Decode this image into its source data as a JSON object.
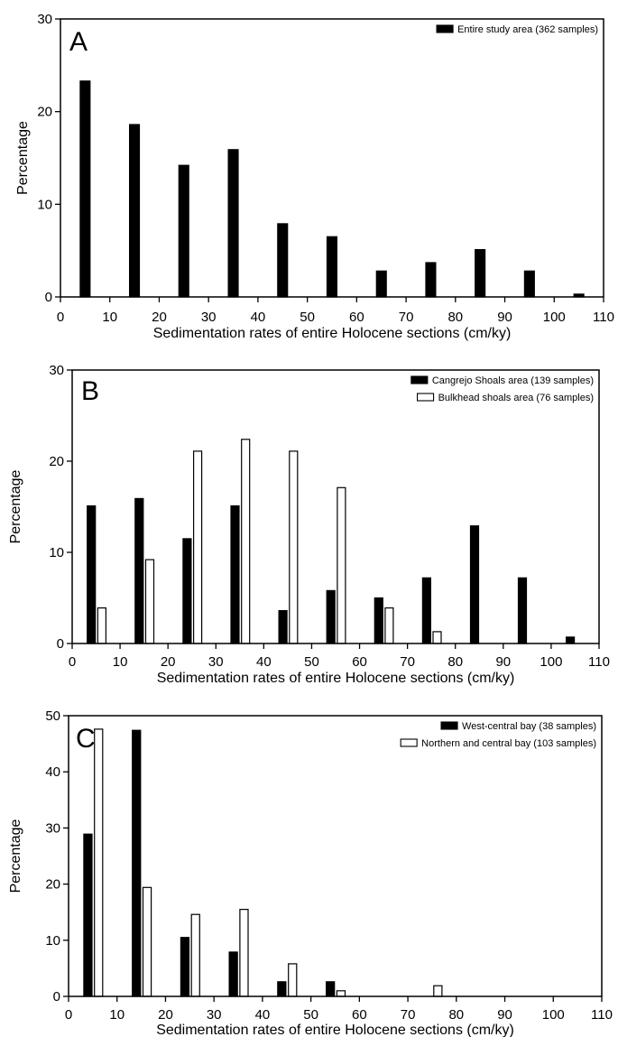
{
  "chart_data": [
    {
      "type": "bar",
      "panel_label": "A",
      "xlabel": "Sedimentation rates of entire Holocene sections (cm/ky)",
      "ylabel": "Percentage",
      "xlim": [
        0,
        110
      ],
      "ylim": [
        0,
        30
      ],
      "xticks": [
        0,
        10,
        20,
        30,
        40,
        50,
        60,
        70,
        80,
        90,
        100,
        110
      ],
      "yticks": [
        0,
        10,
        20,
        30
      ],
      "grid": false,
      "legend_position": "top-right",
      "x": [
        5,
        15,
        25,
        35,
        45,
        55,
        65,
        75,
        85,
        95,
        105
      ],
      "series": [
        {
          "name": "Entire study area (362 samples)",
          "fill": "#000000",
          "values": [
            23.3,
            18.6,
            14.2,
            15.9,
            7.9,
            6.5,
            2.8,
            3.7,
            5.1,
            2.8,
            0.3
          ]
        }
      ]
    },
    {
      "type": "bar",
      "panel_label": "B",
      "xlabel": "Sedimentation rates of entire Holocene sections (cm/ky)",
      "ylabel": "Percentage",
      "xlim": [
        0,
        110
      ],
      "ylim": [
        0,
        30
      ],
      "xticks": [
        0,
        10,
        20,
        30,
        40,
        50,
        60,
        70,
        80,
        90,
        100,
        110
      ],
      "yticks": [
        0,
        10,
        20,
        30
      ],
      "grid": false,
      "legend_position": "top-right",
      "x": [
        5,
        15,
        25,
        35,
        45,
        55,
        65,
        75,
        85,
        95,
        105
      ],
      "series": [
        {
          "name": "Cangrejo Shoals area (139 samples)",
          "fill": "#000000",
          "values": [
            15.1,
            15.9,
            11.5,
            15.1,
            3.6,
            5.8,
            5.0,
            7.2,
            12.9,
            7.2,
            0.7
          ]
        },
        {
          "name": "Bulkhead shoals area (76 samples)",
          "fill": "#ffffff",
          "values": [
            3.9,
            9.2,
            21.1,
            22.4,
            21.1,
            17.1,
            3.9,
            1.3,
            0,
            0,
            0
          ]
        }
      ]
    },
    {
      "type": "bar",
      "panel_label": "C",
      "xlabel": "Sedimentation rates of entire Holocene sections (cm/ky)",
      "ylabel": "Percentage",
      "xlim": [
        0,
        110
      ],
      "ylim": [
        0,
        50
      ],
      "xticks": [
        0,
        10,
        20,
        30,
        40,
        50,
        60,
        70,
        80,
        90,
        100,
        110
      ],
      "yticks": [
        0,
        10,
        20,
        30,
        40,
        50
      ],
      "grid": false,
      "legend_position": "top-right",
      "x": [
        5,
        15,
        25,
        35,
        45,
        55,
        65,
        75,
        85,
        95,
        105
      ],
      "series": [
        {
          "name": "West-central bay (38 samples)",
          "fill": "#000000",
          "values": [
            28.9,
            47.4,
            10.5,
            7.9,
            2.6,
            2.6,
            0,
            0,
            0,
            0,
            0
          ]
        },
        {
          "name": "Northern and central bay (103 samples)",
          "fill": "#ffffff",
          "values": [
            47.6,
            19.4,
            14.6,
            15.5,
            5.8,
            1.0,
            0,
            1.9,
            0,
            0,
            0
          ]
        }
      ]
    }
  ]
}
